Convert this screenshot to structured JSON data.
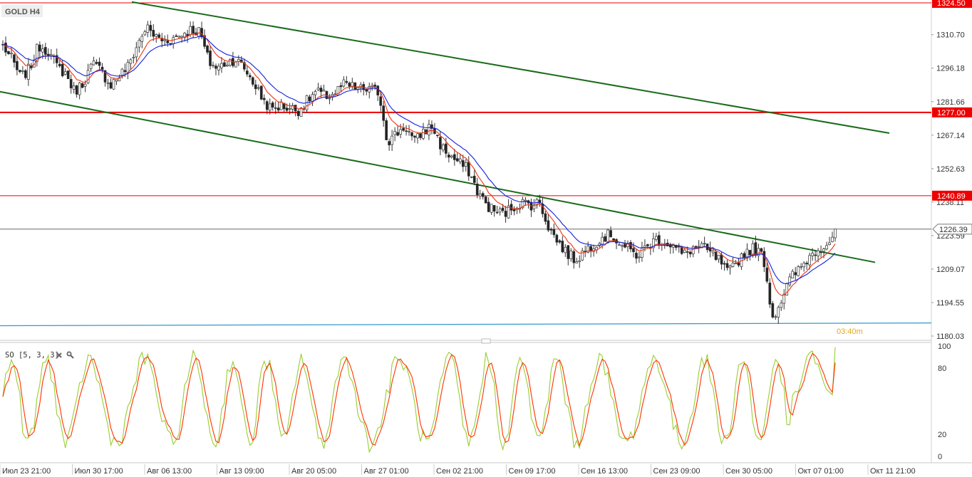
{
  "symbol_label": "GOLD H4",
  "indicator": {
    "label": "SO [5, 3, 3]",
    "close_icon": "close-icon",
    "settings_icon": "wrench-icon",
    "ticks": [
      "100",
      "80",
      "20",
      "0"
    ],
    "tick_values": [
      100,
      80,
      20,
      0
    ],
    "ylim": [
      0,
      100
    ],
    "k_color": "#9acd32",
    "d_color": "#ff3300"
  },
  "countdown": "03:40m",
  "colors": {
    "up_candle": "#ffffff",
    "down_candle": "#222222",
    "wick": "#333333",
    "channel": "#1a6b1a",
    "level": "#ee0000",
    "support": "#3399cc",
    "ma_fast": "#ee3311",
    "ma_slow": "#1122dd",
    "price_line": "#555555",
    "countdown": "#e6a817"
  },
  "chart_data": {
    "type": "candlestick",
    "title": "GOLD H4",
    "ylim": [
      1180.03,
      1324.5
    ],
    "y_ticks": [
      "1310.70",
      "1296.18",
      "1281.66",
      "1267.14",
      "1252.63",
      "1238.11",
      "1223.59",
      "1209.07",
      "1194.55",
      "1180.03"
    ],
    "y_tick_values": [
      1310.7,
      1296.18,
      1281.66,
      1267.14,
      1252.63,
      1238.11,
      1223.59,
      1209.07,
      1194.55,
      1180.03
    ],
    "x_ticks": [
      "Июл 23 21:00",
      "Июл 30 17:00",
      "Авг 06 13:00",
      "Авг 13 09:00",
      "Авг 20 05:00",
      "Авг 27 01:00",
      "Сен 02 21:00",
      "Сен 09 17:00",
      "Сен 16 13:00",
      "Сен 23 09:00",
      "Сен 30 05:00",
      "Окт 07 01:00",
      "Окт 11 21:00"
    ],
    "current_price": "1226.39",
    "current_price_value": 1226.39,
    "levels": [
      {
        "label": "1324.50",
        "value": 1324.5
      },
      {
        "label": "1277.00",
        "value": 1277.0
      },
      {
        "label": "1240.89",
        "value": 1240.89
      }
    ],
    "channel_lines": [
      {
        "name": "upper",
        "from": 1324.9,
        "to": 1268.0
      },
      {
        "name": "lower",
        "from": 1286.0,
        "to": 1212.0
      },
      {
        "name": "support",
        "from": 1184.5,
        "to": 1185.7
      }
    ],
    "price_path": [
      1306,
      1300,
      1292,
      1296,
      1306,
      1304,
      1297,
      1294,
      1286,
      1290,
      1298,
      1295,
      1289,
      1293,
      1297,
      1306,
      1314,
      1310,
      1308,
      1309,
      1311,
      1313,
      1312,
      1299,
      1296,
      1299,
      1300,
      1296,
      1290,
      1283,
      1278,
      1280,
      1279,
      1278,
      1282,
      1286,
      1284,
      1285,
      1289,
      1288,
      1287,
      1287,
      1286,
      1264,
      1268,
      1271,
      1264,
      1269,
      1271,
      1262,
      1258,
      1255,
      1252,
      1243,
      1237,
      1234,
      1233,
      1236,
      1238,
      1237,
      1238,
      1227,
      1221,
      1216,
      1213,
      1217,
      1220,
      1223,
      1224,
      1220,
      1217,
      1215,
      1219,
      1222,
      1221,
      1219,
      1215,
      1218,
      1219,
      1216,
      1213,
      1207,
      1212,
      1217,
      1218,
      1214,
      1188,
      1196,
      1205,
      1209,
      1214,
      1218,
      1220,
      1224
    ]
  }
}
